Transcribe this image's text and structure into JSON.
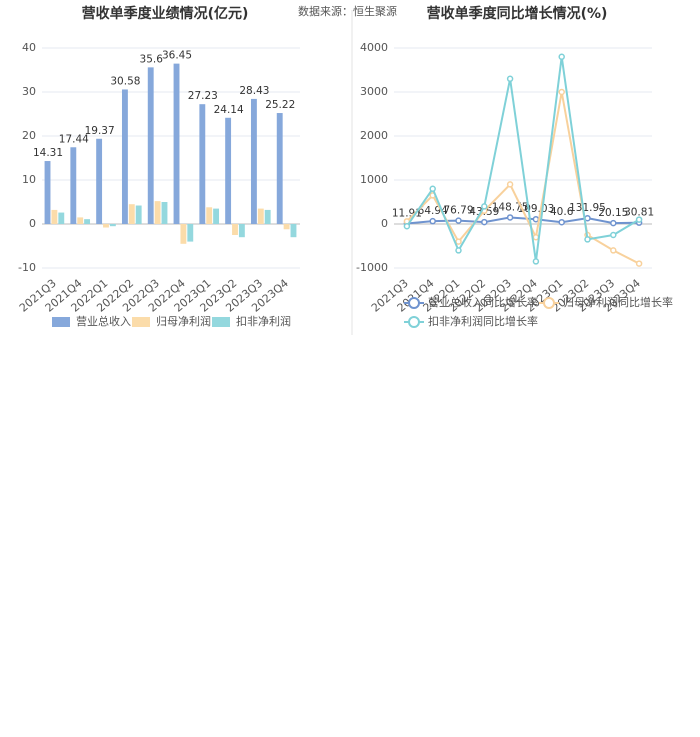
{
  "chart_data": [
    {
      "type": "bar",
      "title": "营收单季度业绩情况(亿元)",
      "source": "数据来源：恒生聚源",
      "categories": [
        "2021Q3",
        "2021Q4",
        "2022Q1",
        "2022Q2",
        "2022Q3",
        "2022Q4",
        "2023Q1",
        "2023Q2",
        "2023Q3",
        "2023Q4"
      ],
      "series": [
        {
          "name": "营业总收入",
          "color": "#86a8db",
          "values": [
            14.31,
            17.44,
            19.37,
            30.58,
            35.6,
            36.45,
            27.23,
            24.14,
            28.43,
            25.22
          ]
        },
        {
          "name": "归母净利润",
          "color": "#fbdcaa",
          "values": [
            3.2,
            1.5,
            -0.8,
            4.5,
            5.2,
            -4.5,
            3.8,
            -2.5,
            3.5,
            -1.2
          ]
        },
        {
          "name": "扣非净利润",
          "color": "#94d8de",
          "values": [
            2.6,
            1.1,
            -0.5,
            4.2,
            5.0,
            -4.0,
            3.5,
            -3.0,
            3.2,
            -3.0
          ]
        }
      ],
      "ylim": [
        -10,
        40
      ],
      "yticks": [
        -10,
        0,
        10,
        20,
        30,
        40
      ],
      "grid": true
    },
    {
      "type": "line",
      "title": "营收单季度同比增长情况(%)",
      "categories": [
        "2021Q3",
        "2021Q4",
        "2022Q1",
        "2022Q2",
        "2022Q3",
        "2022Q4",
        "2023Q1",
        "2023Q2",
        "2023Q3",
        "2023Q4"
      ],
      "series": [
        {
          "name": "营业总收入同比增长率",
          "color": "#6f93cf",
          "values": [
            11.91,
            64.94,
            76.79,
            43.59,
            148.75,
            109.03,
            40.6,
            131.95,
            20.15,
            30.81
          ]
        },
        {
          "name": "归母净利润同比增长率",
          "color": "#f8d19c",
          "values": [
            60,
            650,
            -400,
            300,
            900,
            -300,
            3000,
            -250,
            -600,
            -900
          ]
        },
        {
          "name": "扣非净利润同比增长率",
          "color": "#7fd1d8",
          "values": [
            -50,
            800,
            -600,
            400,
            3300,
            -850,
            3800,
            -350,
            -250,
            100
          ]
        }
      ],
      "ylim": [
        -1000,
        4000
      ],
      "yticks": [
        -1000,
        0,
        1000,
        2000,
        3000,
        4000
      ],
      "grid": true
    }
  ]
}
